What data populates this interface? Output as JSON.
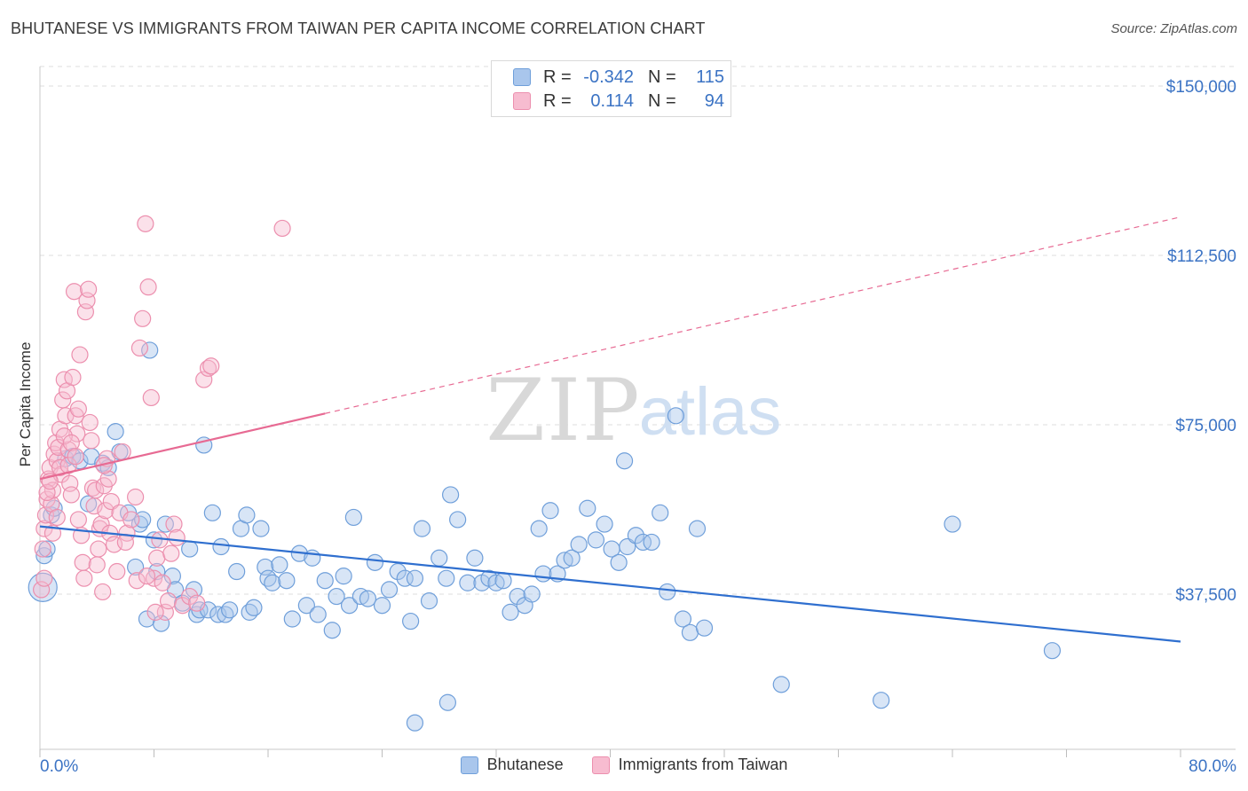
{
  "title": "BHUTANESE VS IMMIGRANTS FROM TAIWAN PER CAPITA INCOME CORRELATION CHART",
  "source": "Source: ZipAtlas.com",
  "watermark": {
    "left": "ZIP",
    "right": "atlas"
  },
  "legend": {
    "rows": [
      {
        "r_label": "R =",
        "r_value": "-0.342",
        "n_label": "N =",
        "n_value": "115",
        "color": "#a9c6ec",
        "border": "#6f9fda"
      },
      {
        "r_label": "R =",
        "r_value": "0.114",
        "n_label": "N =",
        "n_value": "94",
        "color": "#f7bcd0",
        "border": "#ec8fae"
      }
    ]
  },
  "bottom_legend": [
    {
      "label": "Bhutanese",
      "color": "#a9c6ec",
      "border": "#6f9fda"
    },
    {
      "label": "Immigrants from Taiwan",
      "color": "#f7bcd0",
      "border": "#ec8fae"
    }
  ],
  "chart_data": {
    "type": "scatter",
    "title": "BHUTANESE VS IMMIGRANTS FROM TAIWAN PER CAPITA INCOME CORRELATION CHART",
    "xlabel": "",
    "ylabel": "Per Capita Income",
    "xlim": [
      0,
      80
    ],
    "ylim": [
      0,
      155000
    ],
    "x_tick_labels": [
      "0.0%",
      "80.0%"
    ],
    "y_ticks": [
      37500,
      75000,
      112500,
      150000
    ],
    "y_tick_labels": [
      "$37,500",
      "$75,000",
      "$112,500",
      "$150,000"
    ],
    "grid": true,
    "legend_position": "top-center",
    "colors": {
      "blue": "#4a86d6",
      "blue_line": "#2f6fcf",
      "pink": "#ec8fae",
      "pink_line": "#e76a93"
    },
    "series": [
      {
        "name": "Bhutanese",
        "color": "#a9c6ec",
        "trend": {
          "x": [
            0,
            80
          ],
          "y": [
            52500,
            27000
          ],
          "style": "solid"
        },
        "points": [
          [
            0.2,
            39000
          ],
          [
            0.3,
            46000
          ],
          [
            0.5,
            47500
          ],
          [
            0.8,
            55000
          ],
          [
            1.0,
            56500
          ],
          [
            1.8,
            67500
          ],
          [
            2.3,
            68000
          ],
          [
            2.8,
            67000
          ],
          [
            3.4,
            57500
          ],
          [
            3.6,
            68000
          ],
          [
            4.4,
            66500
          ],
          [
            4.8,
            65500
          ],
          [
            5.3,
            73500
          ],
          [
            5.6,
            69000
          ],
          [
            6.2,
            55500
          ],
          [
            6.7,
            43500
          ],
          [
            7.0,
            53000
          ],
          [
            7.2,
            54000
          ],
          [
            7.5,
            32000
          ],
          [
            7.7,
            91500
          ],
          [
            8.0,
            49500
          ],
          [
            8.2,
            42500
          ],
          [
            8.5,
            31000
          ],
          [
            8.8,
            53000
          ],
          [
            9.3,
            41500
          ],
          [
            9.5,
            38500
          ],
          [
            10.0,
            35500
          ],
          [
            10.5,
            47500
          ],
          [
            10.8,
            38500
          ],
          [
            11.0,
            33000
          ],
          [
            11.2,
            34000
          ],
          [
            11.5,
            70500
          ],
          [
            11.8,
            34000
          ],
          [
            12.1,
            55500
          ],
          [
            12.5,
            33000
          ],
          [
            12.7,
            48000
          ],
          [
            13.0,
            33000
          ],
          [
            13.3,
            34000
          ],
          [
            13.8,
            42500
          ],
          [
            14.1,
            52000
          ],
          [
            14.5,
            55000
          ],
          [
            14.7,
            33500
          ],
          [
            15.0,
            34500
          ],
          [
            15.5,
            52000
          ],
          [
            15.8,
            43500
          ],
          [
            16.0,
            41000
          ],
          [
            16.3,
            40000
          ],
          [
            16.8,
            44000
          ],
          [
            17.3,
            40500
          ],
          [
            17.7,
            32000
          ],
          [
            18.2,
            46500
          ],
          [
            18.7,
            35000
          ],
          [
            19.1,
            45500
          ],
          [
            19.5,
            33000
          ],
          [
            20.0,
            40500
          ],
          [
            20.5,
            29500
          ],
          [
            20.8,
            37000
          ],
          [
            21.3,
            41500
          ],
          [
            21.7,
            35000
          ],
          [
            22.0,
            54500
          ],
          [
            22.5,
            37000
          ],
          [
            23.0,
            36500
          ],
          [
            23.5,
            44500
          ],
          [
            24.0,
            35000
          ],
          [
            24.5,
            38500
          ],
          [
            25.1,
            42500
          ],
          [
            25.6,
            41000
          ],
          [
            26.0,
            31500
          ],
          [
            26.3,
            41000
          ],
          [
            26.8,
            52000
          ],
          [
            27.3,
            36000
          ],
          [
            28.0,
            45500
          ],
          [
            28.5,
            41000
          ],
          [
            28.8,
            59500
          ],
          [
            29.3,
            54000
          ],
          [
            30.0,
            40000
          ],
          [
            30.5,
            45500
          ],
          [
            31.0,
            40000
          ],
          [
            31.5,
            41000
          ],
          [
            32.0,
            40000
          ],
          [
            32.5,
            40500
          ],
          [
            33.0,
            33500
          ],
          [
            33.5,
            37000
          ],
          [
            34.0,
            35000
          ],
          [
            34.5,
            37500
          ],
          [
            35.0,
            52000
          ],
          [
            35.3,
            42000
          ],
          [
            35.8,
            56000
          ],
          [
            36.3,
            42000
          ],
          [
            36.8,
            45000
          ],
          [
            37.3,
            45500
          ],
          [
            37.8,
            48500
          ],
          [
            38.4,
            56500
          ],
          [
            39.0,
            49500
          ],
          [
            39.6,
            53000
          ],
          [
            40.1,
            47500
          ],
          [
            40.6,
            44500
          ],
          [
            41.2,
            48000
          ],
          [
            41.8,
            50500
          ],
          [
            42.3,
            49000
          ],
          [
            42.9,
            49000
          ],
          [
            43.5,
            55500
          ],
          [
            44.0,
            38000
          ],
          [
            44.6,
            77000
          ],
          [
            45.1,
            32000
          ],
          [
            45.6,
            29000
          ],
          [
            46.1,
            52000
          ],
          [
            46.6,
            30000
          ],
          [
            28.6,
            13500
          ],
          [
            26.3,
            9000
          ],
          [
            41.0,
            67000
          ],
          [
            52.0,
            17500
          ],
          [
            59.0,
            14000
          ],
          [
            64.0,
            53000
          ],
          [
            71.0,
            25000
          ]
        ]
      },
      {
        "name": "Immigrants from Taiwan",
        "color": "#f7bcd0",
        "trend": {
          "x_solid": [
            0,
            20
          ],
          "y_solid": [
            63000,
            77500
          ],
          "x_dashed": [
            20,
            80
          ],
          "y_dashed": [
            77500,
            121000
          ],
          "style": "solid-then-dashed"
        },
        "points": [
          [
            0.1,
            38500
          ],
          [
            0.2,
            47500
          ],
          [
            0.3,
            52000
          ],
          [
            0.4,
            55000
          ],
          [
            0.5,
            58500
          ],
          [
            0.6,
            63000
          ],
          [
            0.7,
            65500
          ],
          [
            0.8,
            57500
          ],
          [
            0.9,
            60500
          ],
          [
            1.0,
            68500
          ],
          [
            1.1,
            71000
          ],
          [
            1.2,
            67000
          ],
          [
            1.3,
            70000
          ],
          [
            1.4,
            74000
          ],
          [
            1.5,
            64000
          ],
          [
            1.6,
            80500
          ],
          [
            1.7,
            85000
          ],
          [
            1.8,
            77000
          ],
          [
            1.9,
            82500
          ],
          [
            2.0,
            69500
          ],
          [
            2.1,
            62000
          ],
          [
            2.2,
            59500
          ],
          [
            2.3,
            85500
          ],
          [
            2.4,
            104500
          ],
          [
            2.5,
            77000
          ],
          [
            2.6,
            73000
          ],
          [
            2.7,
            78500
          ],
          [
            2.8,
            90500
          ],
          [
            2.9,
            50500
          ],
          [
            3.0,
            44500
          ],
          [
            3.1,
            41000
          ],
          [
            3.2,
            100000
          ],
          [
            3.3,
            102500
          ],
          [
            3.4,
            105000
          ],
          [
            3.5,
            75500
          ],
          [
            3.6,
            71500
          ],
          [
            3.7,
            61000
          ],
          [
            3.8,
            57000
          ],
          [
            3.9,
            60500
          ],
          [
            4.0,
            44000
          ],
          [
            4.1,
            47500
          ],
          [
            4.2,
            52000
          ],
          [
            4.3,
            53000
          ],
          [
            4.4,
            38000
          ],
          [
            4.5,
            61500
          ],
          [
            4.6,
            56000
          ],
          [
            4.7,
            67500
          ],
          [
            4.8,
            63000
          ],
          [
            4.9,
            51000
          ],
          [
            5.0,
            58000
          ],
          [
            5.2,
            48500
          ],
          [
            5.4,
            42500
          ],
          [
            5.6,
            55500
          ],
          [
            5.8,
            69000
          ],
          [
            6.1,
            51000
          ],
          [
            6.4,
            54000
          ],
          [
            6.7,
            59000
          ],
          [
            7.0,
            92000
          ],
          [
            7.2,
            98500
          ],
          [
            7.4,
            119500
          ],
          [
            7.6,
            105500
          ],
          [
            7.8,
            81000
          ],
          [
            8.0,
            41000
          ],
          [
            8.2,
            45500
          ],
          [
            8.4,
            49500
          ],
          [
            8.6,
            40000
          ],
          [
            8.8,
            33500
          ],
          [
            9.0,
            36000
          ],
          [
            9.2,
            46500
          ],
          [
            9.4,
            53000
          ],
          [
            9.6,
            50000
          ],
          [
            10.0,
            35000
          ],
          [
            10.5,
            37000
          ],
          [
            11.0,
            35500
          ],
          [
            11.5,
            85000
          ],
          [
            11.8,
            87500
          ],
          [
            12.0,
            88000
          ],
          [
            17.0,
            118500
          ],
          [
            0.3,
            41000
          ],
          [
            0.5,
            60000
          ],
          [
            0.7,
            62500
          ],
          [
            0.9,
            51000
          ],
          [
            1.2,
            54500
          ],
          [
            1.4,
            65500
          ],
          [
            1.7,
            72500
          ],
          [
            2.0,
            66000
          ],
          [
            2.2,
            71000
          ],
          [
            2.5,
            68000
          ],
          [
            2.7,
            54000
          ],
          [
            6.8,
            40500
          ],
          [
            7.5,
            41500
          ],
          [
            8.1,
            33500
          ],
          [
            4.5,
            66000
          ],
          [
            6.0,
            49000
          ]
        ]
      }
    ]
  }
}
